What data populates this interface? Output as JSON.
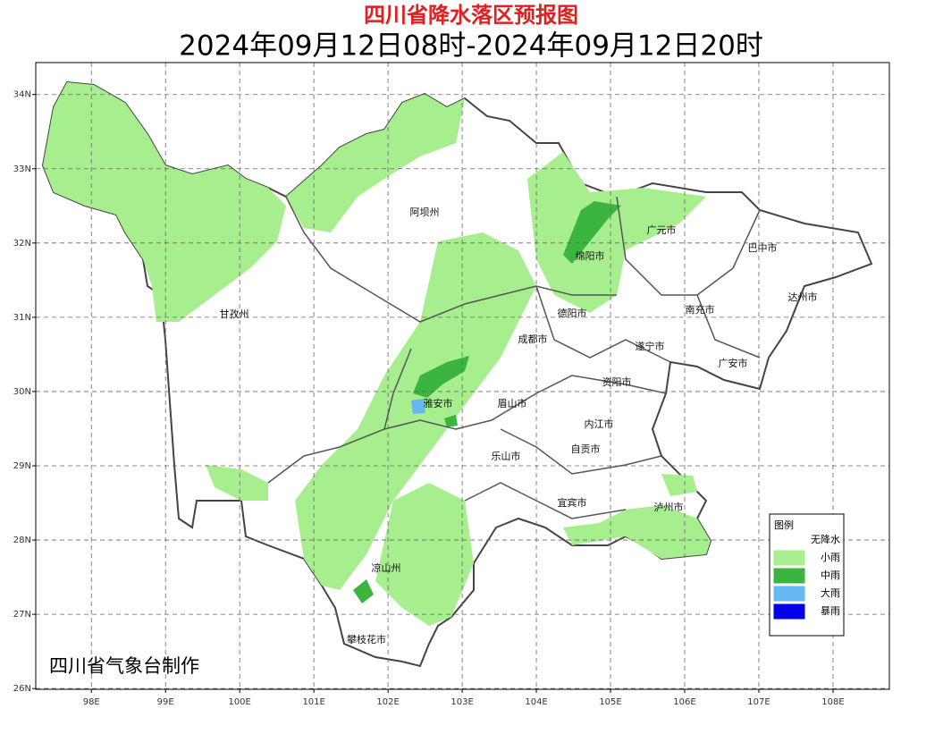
{
  "title": "四川省降水落区预报图",
  "subtitle": "2024年09月12日08时-2024年09月12日20时",
  "credit": "四川省气象台制作",
  "map": {
    "xlim": [
      97.25,
      108.76
    ],
    "ylim": [
      25.99,
      34.43
    ],
    "grid": true,
    "xticks": [
      {
        "value": 98,
        "label": "98E"
      },
      {
        "value": 99,
        "label": "99E"
      },
      {
        "value": 100,
        "label": "100E"
      },
      {
        "value": 101,
        "label": "101E"
      },
      {
        "value": 102,
        "label": "102E"
      },
      {
        "value": 103,
        "label": "103E"
      },
      {
        "value": 104,
        "label": "104E"
      },
      {
        "value": 105,
        "label": "105E"
      },
      {
        "value": 106,
        "label": "106E"
      },
      {
        "value": 107,
        "label": "107E"
      },
      {
        "value": 108,
        "label": "108E"
      }
    ],
    "yticks": [
      {
        "value": 26,
        "label": "26N"
      },
      {
        "value": 27,
        "label": "27N"
      },
      {
        "value": 28,
        "label": "28N"
      },
      {
        "value": 29,
        "label": "29N"
      },
      {
        "value": 30,
        "label": "30N"
      },
      {
        "value": 31,
        "label": "31N"
      },
      {
        "value": 32,
        "label": "32N"
      },
      {
        "value": 33,
        "label": "33N"
      },
      {
        "value": 34,
        "label": "34N"
      }
    ]
  },
  "cities": [
    "阿坝州",
    "广元市",
    "巴中市",
    "绵阳市",
    "甘孜州",
    "达州市",
    "德阳市",
    "南充市",
    "成都市",
    "遂宁市",
    "广安市",
    "资阳市",
    "雅安市",
    "眉山市",
    "内江市",
    "自贡市",
    "乐山市",
    "宜宾市",
    "泸州市",
    "凉山州",
    "攀枝花市"
  ],
  "legend": {
    "title": "图例",
    "items": [
      {
        "label": "无降水",
        "color": "#ffffff"
      },
      {
        "label": "小雨",
        "color": "#a6ee8e"
      },
      {
        "label": "中雨",
        "color": "#3bb53f"
      },
      {
        "label": "大雨",
        "color": "#66b8f5"
      },
      {
        "label": "暴雨",
        "color": "#0000ee"
      }
    ]
  }
}
